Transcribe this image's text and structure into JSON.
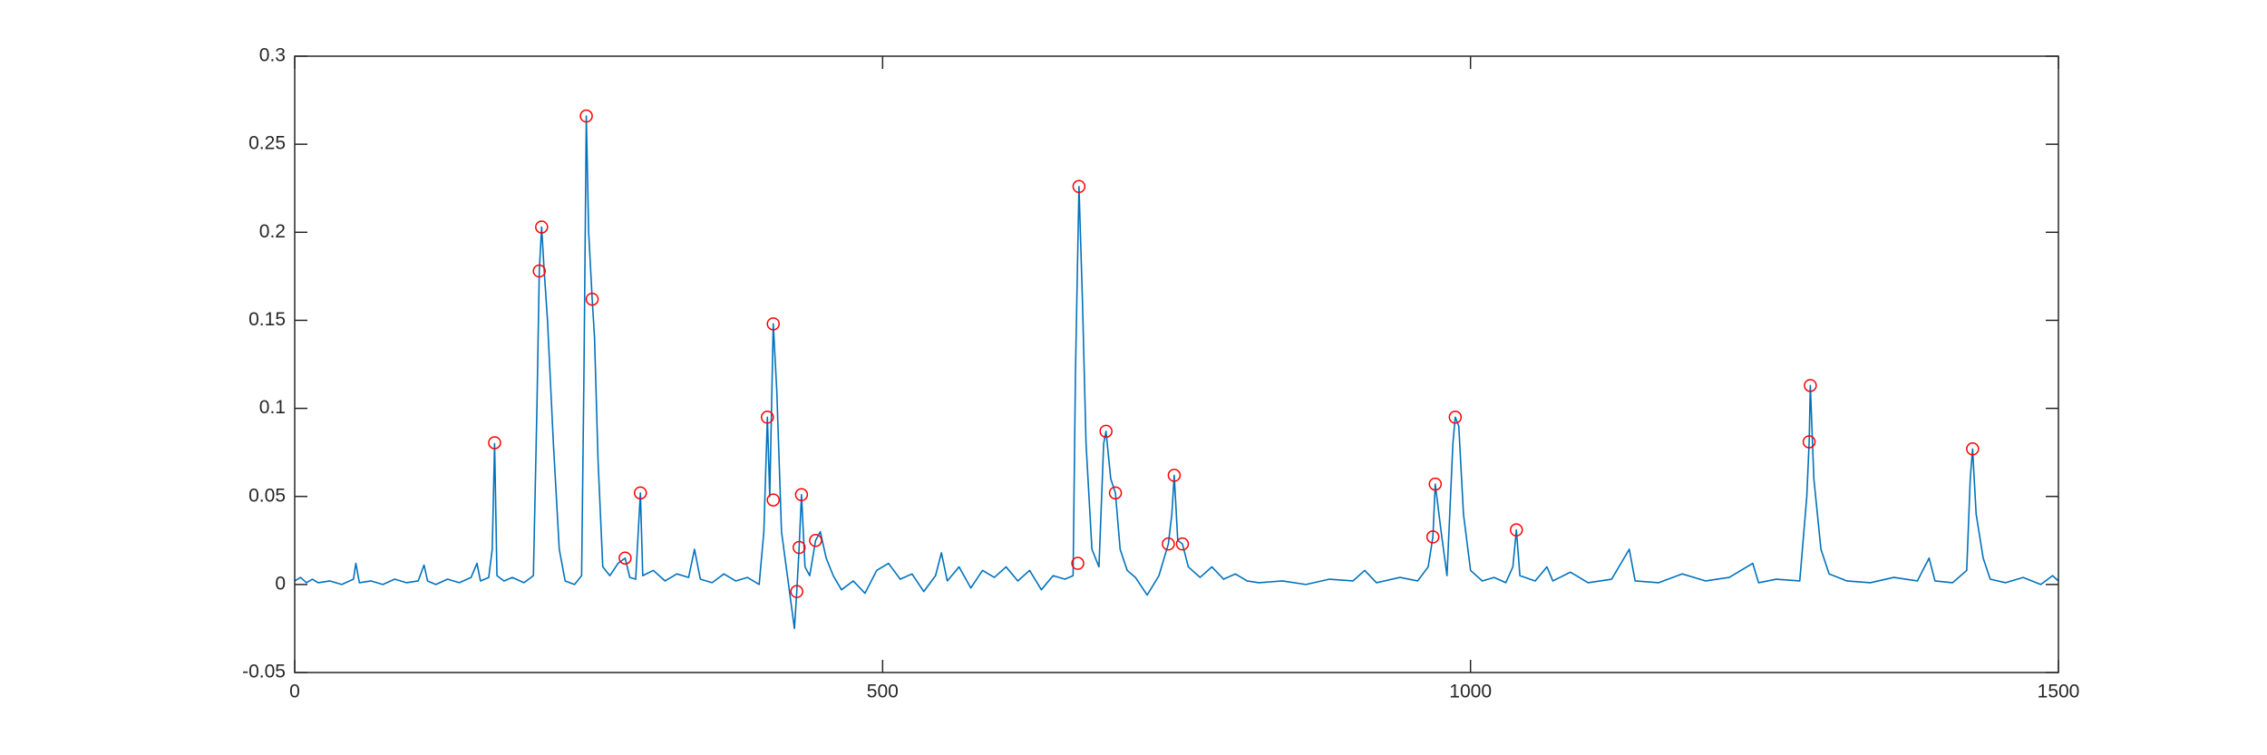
{
  "chart_data": {
    "type": "line",
    "xlim": [
      0,
      1500
    ],
    "xticks": [
      0,
      500,
      1000,
      1500
    ],
    "ylim": [
      -0.05,
      0.3
    ],
    "yticks": [
      -0.05,
      0,
      0.05,
      0.1,
      0.15,
      0.2,
      0.25,
      0.3
    ],
    "series": [
      {
        "style": "line",
        "color": "#0072bd",
        "x": [
          0,
          5,
          10,
          15,
          20,
          30,
          40,
          50,
          52,
          55,
          65,
          75,
          85,
          95,
          105,
          110,
          113,
          120,
          130,
          140,
          150,
          155,
          158,
          165,
          168,
          170,
          172,
          178,
          185,
          195,
          203,
          206,
          208,
          210,
          212,
          215,
          220,
          225,
          230,
          238,
          244,
          246,
          248,
          250,
          253,
          255,
          258,
          262,
          268,
          275,
          281,
          285,
          290,
          293,
          294,
          296,
          305,
          315,
          325,
          335,
          340,
          345,
          355,
          365,
          375,
          385,
          395,
          399,
          402,
          404,
          407,
          410,
          414,
          418,
          422,
          425,
          427,
          429,
          431,
          434,
          438,
          443,
          447,
          452,
          458,
          465,
          475,
          485,
          495,
          505,
          515,
          525,
          535,
          545,
          550,
          555,
          565,
          575,
          585,
          595,
          605,
          615,
          625,
          635,
          645,
          655,
          662,
          664,
          667,
          670,
          673,
          678,
          684,
          688,
          690,
          694,
          698,
          702,
          708,
          715,
          725,
          735,
          743,
          746,
          748,
          751,
          755,
          760,
          770,
          780,
          790,
          800,
          810,
          820,
          840,
          860,
          880,
          900,
          910,
          920,
          940,
          955,
          964,
          968,
          970,
          975,
          980,
          985,
          987,
          990,
          994,
          1000,
          1010,
          1020,
          1030,
          1036,
          1039,
          1042,
          1055,
          1065,
          1070,
          1085,
          1100,
          1120,
          1135,
          1140,
          1160,
          1180,
          1200,
          1220,
          1240,
          1245,
          1260,
          1280,
          1286,
          1288,
          1289,
          1292,
          1298,
          1305,
          1320,
          1340,
          1360,
          1380,
          1390,
          1395,
          1410,
          1422,
          1425,
          1427,
          1430,
          1436,
          1442,
          1455,
          1470,
          1485,
          1495,
          1500
        ],
        "values": [
          0.002,
          0.004,
          0.001,
          0.003,
          0.001,
          0.002,
          0.0,
          0.003,
          0.012,
          0.001,
          0.002,
          0.0,
          0.003,
          0.001,
          0.002,
          0.011,
          0.002,
          0.0,
          0.003,
          0.001,
          0.004,
          0.012,
          0.002,
          0.004,
          0.02,
          0.08,
          0.005,
          0.002,
          0.004,
          0.001,
          0.005,
          0.1,
          0.178,
          0.203,
          0.18,
          0.15,
          0.08,
          0.02,
          0.002,
          0.0,
          0.005,
          0.12,
          0.266,
          0.2,
          0.162,
          0.14,
          0.07,
          0.01,
          0.005,
          0.012,
          0.015,
          0.004,
          0.003,
          0.04,
          0.052,
          0.005,
          0.008,
          0.002,
          0.006,
          0.004,
          0.02,
          0.003,
          0.001,
          0.006,
          0.002,
          0.004,
          0.0,
          0.03,
          0.095,
          0.05,
          0.148,
          0.11,
          0.03,
          0.01,
          -0.01,
          -0.025,
          -0.004,
          0.021,
          0.051,
          0.01,
          0.005,
          0.025,
          0.03,
          0.015,
          0.005,
          -0.003,
          0.002,
          -0.005,
          0.008,
          0.012,
          0.003,
          0.006,
          -0.004,
          0.005,
          0.018,
          0.002,
          0.01,
          -0.002,
          0.008,
          0.004,
          0.01,
          0.002,
          0.008,
          -0.003,
          0.005,
          0.003,
          0.005,
          0.12,
          0.226,
          0.16,
          0.08,
          0.02,
          0.01,
          0.08,
          0.087,
          0.06,
          0.052,
          0.02,
          0.008,
          0.004,
          -0.006,
          0.005,
          0.023,
          0.04,
          0.062,
          0.025,
          0.023,
          0.01,
          0.004,
          0.01,
          0.003,
          0.006,
          0.002,
          0.001,
          0.002,
          0.0,
          0.003,
          0.002,
          0.008,
          0.001,
          0.004,
          0.002,
          0.01,
          0.027,
          0.057,
          0.03,
          0.005,
          0.08,
          0.095,
          0.09,
          0.04,
          0.008,
          0.002,
          0.004,
          0.001,
          0.01,
          0.031,
          0.005,
          0.002,
          0.01,
          0.002,
          0.007,
          0.001,
          0.003,
          0.02,
          0.002,
          0.001,
          0.006,
          0.002,
          0.004,
          0.012,
          0.001,
          0.003,
          0.002,
          0.05,
          0.081,
          0.113,
          0.06,
          0.02,
          0.006,
          0.002,
          0.001,
          0.004,
          0.002,
          0.015,
          0.002,
          0.001,
          0.008,
          0.06,
          0.077,
          0.04,
          0.015,
          0.003,
          0.001,
          0.004,
          0.0,
          0.005,
          0.002
        ]
      },
      {
        "style": "circle",
        "color": "#ff0000",
        "x": [
          170,
          208,
          210,
          248,
          253,
          281,
          294,
          402,
          407,
          407,
          427,
          429,
          431,
          443,
          666,
          667,
          690,
          698,
          743,
          748,
          755,
          968,
          970,
          987,
          1039,
          1288,
          1289,
          1427
        ],
        "values": [
          0.0805,
          0.178,
          0.203,
          0.266,
          0.162,
          0.015,
          0.052,
          0.095,
          0.148,
          0.048,
          -0.004,
          0.021,
          0.051,
          0.025,
          0.012,
          0.226,
          0.087,
          0.052,
          0.023,
          0.062,
          0.023,
          0.027,
          0.057,
          0.095,
          0.031,
          0.081,
          0.113,
          0.077
        ]
      }
    ]
  }
}
